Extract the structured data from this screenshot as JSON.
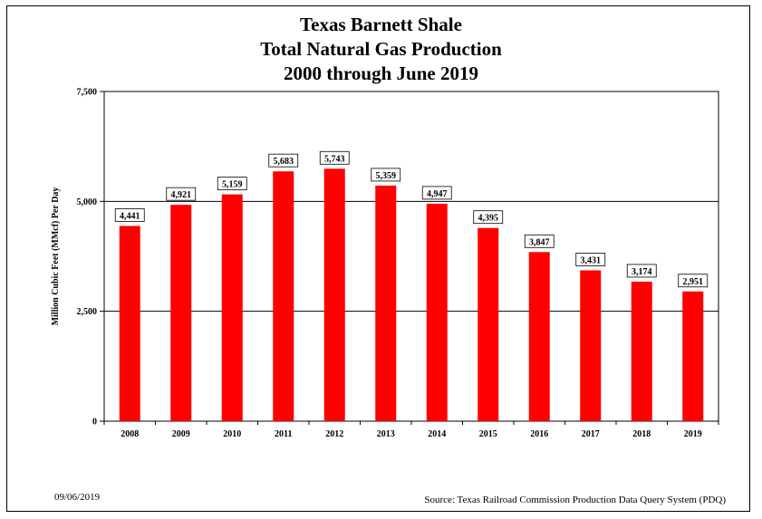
{
  "chart_data": {
    "type": "bar",
    "title": [
      "Texas Barnett Shale",
      "Total Natural Gas Production",
      "2000 through June 2019"
    ],
    "categories": [
      "2008",
      "2009",
      "2010",
      "2011",
      "2012",
      "2013",
      "2014",
      "2015",
      "2016",
      "2017",
      "2018",
      "2019"
    ],
    "values": [
      4441,
      4921,
      5159,
      5683,
      5743,
      5359,
      4947,
      4395,
      3847,
      3431,
      3174,
      2951
    ],
    "value_labels": [
      "4,441",
      "4,921",
      "5,159",
      "5,683",
      "5,743",
      "5,359",
      "4,947",
      "4,395",
      "3,847",
      "3,431",
      "3,174",
      "2,951"
    ],
    "ylabel": "Million Cubic Feet (MMcf) Per Day",
    "xlabel": "",
    "ylim": [
      0,
      7500
    ],
    "yticks": [
      0,
      2500,
      5000,
      7500
    ],
    "ytick_labels": [
      "0",
      "2,500",
      "5,000",
      "7,500"
    ],
    "bar_color": "#ff0000",
    "grid": true
  },
  "footer": {
    "date": "09/06/2019",
    "source": "Source: Texas Railroad Commission Production Data Query System (PDQ)"
  }
}
